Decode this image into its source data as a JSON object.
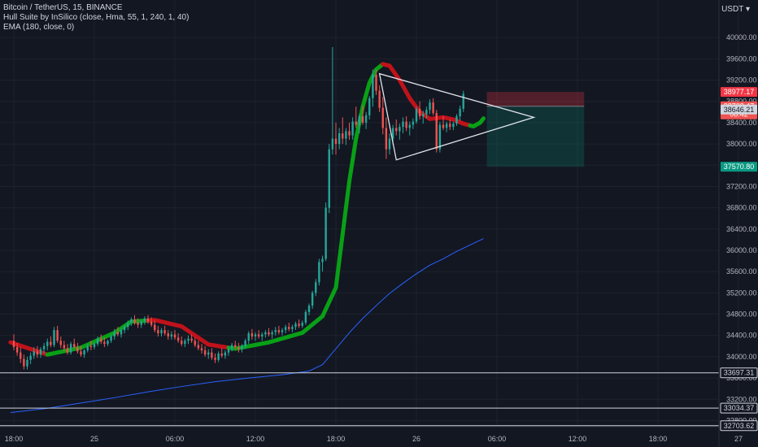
{
  "legend": {
    "symbol": "Bitcoin / TetherUS, 15, BINANCE",
    "indicator1": "Hull Suite by InSilico (close, Hma, 55, 1, 240, 1, 40)",
    "indicator2": "EMA (180, close, 0)"
  },
  "currency": "USDT",
  "colors": {
    "background": "#131722",
    "up": "#26a69a",
    "down": "#ef5350",
    "hull_up": "#09a016",
    "hull_down": "#c0121a",
    "ema": "#2962ff",
    "grid": "#1e222d",
    "hline": "#d1d4dc"
  },
  "chart_data": {
    "type": "candlestick",
    "ylim": [
      32700,
      40400
    ],
    "y_ticks": [
      "40000.00",
      "39600.00",
      "39200.00",
      "38800.00",
      "38400.00",
      "38000.00",
      "37600.00",
      "37200.00",
      "36800.00",
      "36400.00",
      "36000.00",
      "35600.00",
      "35200.00",
      "34800.00",
      "34400.00",
      "34000.00",
      "33600.00",
      "33200.00",
      "32800.00"
    ],
    "x_ticks": [
      {
        "label": "18:00",
        "t": 0
      },
      {
        "label": "25",
        "t": 24
      },
      {
        "label": "06:00",
        "t": 48
      },
      {
        "label": "12:00",
        "t": 72
      },
      {
        "label": "18:00",
        "t": 96
      },
      {
        "label": "26",
        "t": 120
      },
      {
        "label": "06:00",
        "t": 144
      },
      {
        "label": "12:00",
        "t": 168
      },
      {
        "label": "18:00",
        "t": 192
      },
      {
        "label": "27",
        "t": 216
      }
    ],
    "bars": [
      [
        34300,
        34420,
        34120,
        34180
      ],
      [
        34180,
        34260,
        34020,
        34080
      ],
      [
        34080,
        34180,
        33880,
        33960
      ],
      [
        33960,
        34040,
        33760,
        33820
      ],
      [
        33820,
        34000,
        33760,
        33940
      ],
      [
        33940,
        34080,
        33860,
        34020
      ],
      [
        34020,
        34180,
        33960,
        34100
      ],
      [
        34100,
        34200,
        33980,
        34040
      ],
      [
        34040,
        34180,
        33980,
        34140
      ],
      [
        34140,
        34260,
        34060,
        34200
      ],
      [
        34200,
        34340,
        34120,
        34280
      ],
      [
        34280,
        34380,
        34180,
        34220
      ],
      [
        34220,
        34560,
        34180,
        34500
      ],
      [
        34500,
        34580,
        34260,
        34300
      ],
      [
        34300,
        34380,
        34160,
        34220
      ],
      [
        34220,
        34300,
        34100,
        34160
      ],
      [
        34160,
        34240,
        34040,
        34080
      ],
      [
        34080,
        34280,
        34040,
        34240
      ],
      [
        34240,
        34340,
        34140,
        34180
      ],
      [
        34180,
        34260,
        34060,
        34100
      ],
      [
        34100,
        34200,
        34000,
        34040
      ],
      [
        34040,
        34140,
        33980,
        34120
      ],
      [
        34120,
        34240,
        34080,
        34200
      ],
      [
        34200,
        34300,
        34120,
        34180
      ],
      [
        34180,
        34280,
        34140,
        34240
      ],
      [
        34240,
        34380,
        34200,
        34340
      ],
      [
        34340,
        34420,
        34240,
        34280
      ],
      [
        34280,
        34360,
        34180,
        34240
      ],
      [
        34240,
        34320,
        34200,
        34300
      ],
      [
        34300,
        34420,
        34260,
        34380
      ],
      [
        34380,
        34520,
        34320,
        34460
      ],
      [
        34460,
        34560,
        34380,
        34420
      ],
      [
        34420,
        34540,
        34360,
        34500
      ],
      [
        34500,
        34600,
        34440,
        34560
      ],
      [
        34560,
        34680,
        34500,
        34640
      ],
      [
        34640,
        34740,
        34580,
        34700
      ],
      [
        34700,
        34780,
        34600,
        34640
      ],
      [
        34640,
        34720,
        34540,
        34600
      ],
      [
        34600,
        34700,
        34540,
        34660
      ],
      [
        34660,
        34760,
        34600,
        34720
      ],
      [
        34720,
        34780,
        34620,
        34660
      ],
      [
        34660,
        34740,
        34560,
        34600
      ],
      [
        34600,
        34680,
        34460,
        34500
      ],
      [
        34500,
        34580,
        34380,
        34440
      ],
      [
        34440,
        34540,
        34380,
        34500
      ],
      [
        34500,
        34580,
        34400,
        34440
      ],
      [
        34440,
        34500,
        34320,
        34380
      ],
      [
        34380,
        34480,
        34320,
        34420
      ],
      [
        34420,
        34500,
        34320,
        34360
      ],
      [
        34360,
        34440,
        34260,
        34300
      ],
      [
        34300,
        34380,
        34200,
        34240
      ],
      [
        34240,
        34340,
        34180,
        34300
      ],
      [
        34300,
        34400,
        34240,
        34340
      ],
      [
        34340,
        34420,
        34260,
        34300
      ],
      [
        34300,
        34360,
        34180,
        34220
      ],
      [
        34220,
        34300,
        34120,
        34160
      ],
      [
        34160,
        34240,
        34060,
        34120
      ],
      [
        34120,
        34200,
        34000,
        34040
      ],
      [
        34040,
        34140,
        33960,
        34080
      ],
      [
        34080,
        34160,
        33940,
        33980
      ],
      [
        33980,
        34060,
        33880,
        33940
      ],
      [
        33940,
        34100,
        33900,
        34060
      ],
      [
        34060,
        34160,
        33980,
        34020
      ],
      [
        34020,
        34120,
        33960,
        34080
      ],
      [
        34080,
        34200,
        34020,
        34140
      ],
      [
        34140,
        34260,
        34100,
        34220
      ],
      [
        34220,
        34300,
        34140,
        34180
      ],
      [
        34180,
        34260,
        34080,
        34140
      ],
      [
        34140,
        34240,
        34080,
        34200
      ],
      [
        34200,
        34340,
        34160,
        34300
      ],
      [
        34300,
        34480,
        34240,
        34440
      ],
      [
        34440,
        34520,
        34320,
        34380
      ],
      [
        34380,
        34460,
        34300,
        34420
      ],
      [
        34420,
        34500,
        34340,
        34380
      ],
      [
        34380,
        34460,
        34300,
        34420
      ],
      [
        34420,
        34500,
        34360,
        34460
      ],
      [
        34460,
        34540,
        34380,
        34420
      ],
      [
        34420,
        34500,
        34340,
        34460
      ],
      [
        34460,
        34560,
        34400,
        34500
      ],
      [
        34500,
        34580,
        34420,
        34460
      ],
      [
        34460,
        34540,
        34400,
        34500
      ],
      [
        34500,
        34600,
        34440,
        34560
      ],
      [
        34560,
        34640,
        34480,
        34520
      ],
      [
        34520,
        34600,
        34460,
        34560
      ],
      [
        34560,
        34660,
        34500,
        34620
      ],
      [
        34620,
        34700,
        34540,
        34580
      ],
      [
        34580,
        34680,
        34540,
        34640
      ],
      [
        34640,
        34880,
        34600,
        34840
      ],
      [
        34840,
        35000,
        34780,
        34960
      ],
      [
        34960,
        35240,
        34900,
        35200
      ],
      [
        35200,
        35460,
        35140,
        35400
      ],
      [
        35400,
        35840,
        35340,
        35780
      ],
      [
        35780,
        35900,
        35600,
        35840
      ],
      [
        35840,
        36900,
        35800,
        36800
      ],
      [
        36800,
        38000,
        36700,
        37900
      ],
      [
        37900,
        39820,
        37800,
        38100
      ],
      [
        38100,
        38400,
        37800,
        38000
      ],
      [
        38000,
        38300,
        37900,
        38200
      ],
      [
        38200,
        38500,
        38000,
        38100
      ],
      [
        38100,
        38300,
        37980,
        38240
      ],
      [
        38240,
        38400,
        38080,
        38160
      ],
      [
        38160,
        38500,
        38080,
        38420
      ],
      [
        38420,
        38700,
        38300,
        38360
      ],
      [
        38360,
        38560,
        38200,
        38520
      ],
      [
        38520,
        38720,
        38360,
        38400
      ],
      [
        38400,
        38600,
        38280,
        38540
      ],
      [
        38540,
        38900,
        38460,
        38860
      ],
      [
        38860,
        39400,
        38700,
        39300
      ],
      [
        39300,
        39400,
        38920,
        39000
      ],
      [
        39000,
        39100,
        38600,
        38680
      ],
      [
        38680,
        38880,
        38180,
        38300
      ],
      [
        38300,
        38500,
        37720,
        37900
      ],
      [
        37900,
        38200,
        37800,
        38100
      ],
      [
        38100,
        38360,
        37980,
        38300
      ],
      [
        38300,
        38460,
        38160,
        38240
      ],
      [
        38240,
        38380,
        38080,
        38320
      ],
      [
        38320,
        38500,
        38200,
        38420
      ],
      [
        38420,
        38520,
        38240,
        38300
      ],
      [
        38300,
        38420,
        38160,
        38360
      ],
      [
        38360,
        38480,
        38280,
        38420
      ],
      [
        38420,
        38700,
        38380,
        38660
      ],
      [
        38660,
        38800,
        38460,
        38520
      ],
      [
        38520,
        38620,
        38380,
        38560
      ],
      [
        38560,
        38700,
        38480,
        38640
      ],
      [
        38640,
        38840,
        38560,
        38780
      ],
      [
        38780,
        38860,
        38540,
        38580
      ],
      [
        38580,
        38640,
        37840,
        37900
      ],
      [
        37900,
        38420,
        37840,
        38360
      ],
      [
        38360,
        38520,
        38260,
        38300
      ],
      [
        38300,
        38420,
        38220,
        38380
      ],
      [
        38380,
        38460,
        38260,
        38320
      ],
      [
        38320,
        38420,
        38260,
        38380
      ],
      [
        38380,
        38560,
        38340,
        38520
      ],
      [
        38520,
        38720,
        38440,
        38660
      ],
      [
        38660,
        39000,
        38600,
        38940
      ]
    ],
    "hull_band": [
      [
        -1,
        34270
      ],
      [
        10,
        34040
      ],
      [
        20,
        34170
      ],
      [
        30,
        34450
      ],
      [
        35,
        34660
      ],
      [
        42,
        34690
      ],
      [
        50,
        34570
      ],
      [
        58,
        34230
      ],
      [
        66,
        34150
      ],
      [
        76,
        34270
      ],
      [
        86,
        34450
      ],
      [
        92,
        34760
      ],
      [
        96,
        35300
      ],
      [
        98,
        36300
      ],
      [
        100,
        37300
      ],
      [
        102,
        38100
      ],
      [
        104,
        38700
      ],
      [
        106,
        39150
      ],
      [
        108,
        39400
      ],
      [
        110,
        39500
      ],
      [
        112,
        39470
      ],
      [
        115,
        39200
      ],
      [
        118,
        38860
      ],
      [
        121,
        38600
      ],
      [
        124,
        38470
      ],
      [
        128,
        38500
      ],
      [
        131,
        38460
      ],
      [
        134,
        38380
      ],
      [
        137,
        38330
      ],
      [
        139,
        38400
      ],
      [
        140,
        38480
      ]
    ],
    "hull_down_ranges": [
      [
        -1,
        10
      ],
      [
        40,
        64
      ],
      [
        110,
        136
      ]
    ],
    "ema": [
      [
        -1,
        32950
      ],
      [
        10,
        33030
      ],
      [
        20,
        33130
      ],
      [
        30,
        33230
      ],
      [
        40,
        33340
      ],
      [
        50,
        33440
      ],
      [
        60,
        33530
      ],
      [
        70,
        33600
      ],
      [
        80,
        33660
      ],
      [
        88,
        33730
      ],
      [
        92,
        33850
      ],
      [
        96,
        34150
      ],
      [
        100,
        34450
      ],
      [
        104,
        34720
      ],
      [
        108,
        34960
      ],
      [
        112,
        35190
      ],
      [
        116,
        35380
      ],
      [
        120,
        35560
      ],
      [
        124,
        35720
      ],
      [
        128,
        35840
      ],
      [
        132,
        35980
      ],
      [
        136,
        36100
      ],
      [
        140,
        36220
      ]
    ],
    "triangle": [
      [
        109,
        39320
      ],
      [
        114,
        37700
      ],
      [
        155,
        38500
      ]
    ],
    "position_box": {
      "x0": 141,
      "x1": 170,
      "entry": 38708.47,
      "stop": 38977.17,
      "target": 37570.8
    },
    "hlines": [
      33697.31,
      33034.37,
      32703.62
    ],
    "price_tags": [
      {
        "value": 38977.17,
        "label": "38977.17",
        "bg": "#f23645",
        "fg": "#ffffff"
      },
      {
        "value": 38708.47,
        "label": "38708.47",
        "bg": "#ef5350",
        "fg": "#ffffff",
        "sub": "08:42"
      },
      {
        "value": 38646.21,
        "label": "38646.21",
        "bg": "#d1d4dc",
        "fg": "#131722"
      },
      {
        "value": 37570.8,
        "label": "37570.80",
        "bg": "#089981",
        "fg": "#ffffff"
      },
      {
        "value": 33697.31,
        "label": "33697.31",
        "bg": "#131722",
        "fg": "#d1d4dc",
        "border": "#d1d4dc"
      },
      {
        "value": 33034.37,
        "label": "33034.37",
        "bg": "#131722",
        "fg": "#d1d4dc",
        "border": "#d1d4dc"
      },
      {
        "value": 32703.62,
        "label": "32703.62",
        "bg": "#131722",
        "fg": "#d1d4dc",
        "border": "#d1d4dc"
      }
    ]
  }
}
